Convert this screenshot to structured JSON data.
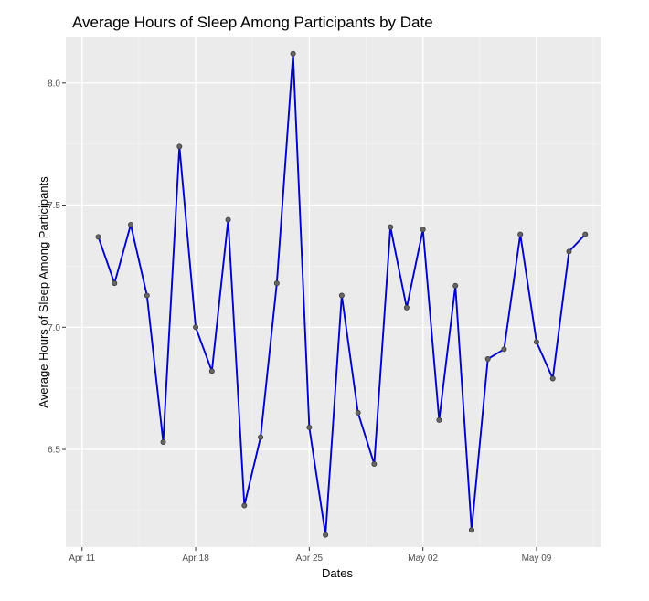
{
  "chart_data": {
    "type": "line",
    "title": "Average Hours of Sleep Among Participants by Date",
    "xlabel": "Dates",
    "ylabel": "Average Hours of Sleep Among Participants",
    "x_type": "date",
    "x_ticks": [
      {
        "date": "2024-04-11",
        "label": "Apr 11"
      },
      {
        "date": "2024-04-18",
        "label": "Apr 18"
      },
      {
        "date": "2024-04-25",
        "label": "Apr 25"
      },
      {
        "date": "2024-05-02",
        "label": "May 02"
      },
      {
        "date": "2024-05-09",
        "label": "May 09"
      }
    ],
    "y_ticks": [
      {
        "value": 6.5,
        "label": "6.5"
      },
      {
        "value": 7.0,
        "label": "7.0"
      },
      {
        "value": 7.5,
        "label": "7.5"
      },
      {
        "value": 8.0,
        "label": "8.0"
      }
    ],
    "xlim": [
      "2024-04-10",
      "2024-05-13"
    ],
    "ylim": [
      6.1,
      8.19
    ],
    "grid": true,
    "colors": {
      "line": "#0000cc",
      "point": "#666666",
      "panel_background": "#ebebeb"
    },
    "series": [
      {
        "x": [
          "2024-04-12",
          "2024-04-13",
          "2024-04-14",
          "2024-04-15",
          "2024-04-16",
          "2024-04-17",
          "2024-04-18",
          "2024-04-19",
          "2024-04-20",
          "2024-04-21",
          "2024-04-22",
          "2024-04-23",
          "2024-04-24",
          "2024-04-25",
          "2024-04-26",
          "2024-04-27",
          "2024-04-28",
          "2024-04-29",
          "2024-04-30",
          "2024-05-01",
          "2024-05-02",
          "2024-05-03",
          "2024-05-04",
          "2024-05-05",
          "2024-05-06",
          "2024-05-07",
          "2024-05-08",
          "2024-05-09",
          "2024-05-10",
          "2024-05-11",
          "2024-05-12"
        ],
        "values": [
          7.37,
          7.18,
          7.42,
          7.13,
          6.53,
          7.74,
          7.0,
          6.82,
          7.44,
          6.27,
          6.55,
          7.18,
          8.12,
          6.59,
          6.15,
          7.13,
          6.65,
          6.44,
          7.41,
          7.08,
          7.4,
          6.62,
          7.17,
          6.17,
          6.87,
          6.91,
          7.38,
          6.94,
          6.79,
          7.31,
          7.38
        ]
      }
    ]
  }
}
